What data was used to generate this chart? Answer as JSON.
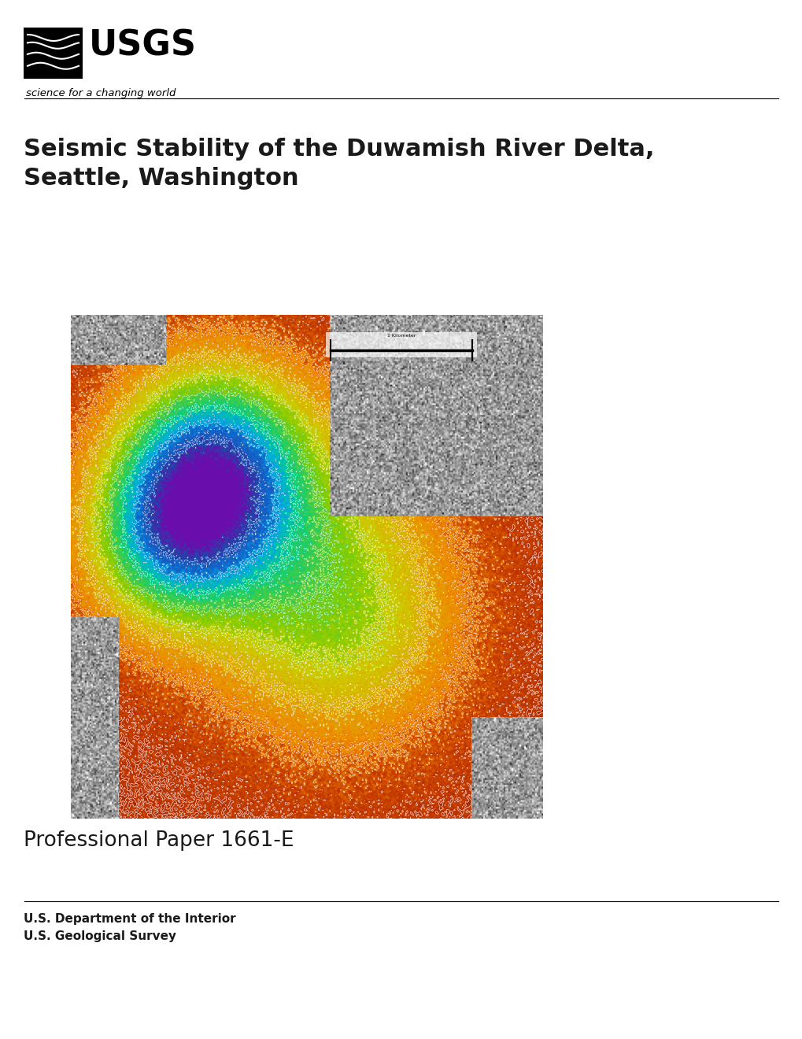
{
  "title_line1": "Seismic Stability of the Duwamish River Delta,",
  "title_line2": "Seattle, Washington",
  "professional_paper": "Professional Paper 1661-E",
  "dept_line1": "U.S. Department of the Interior",
  "dept_line2": "U.S. Geological Survey",
  "title_fontsize": 22,
  "subtitle_fontsize": 18,
  "dept_fontsize": 11,
  "background_color": "#ffffff",
  "text_color": "#1a1a1a",
  "usgs_tagline": "science for a changing world",
  "scale_bar_label": "1 Kilometer"
}
